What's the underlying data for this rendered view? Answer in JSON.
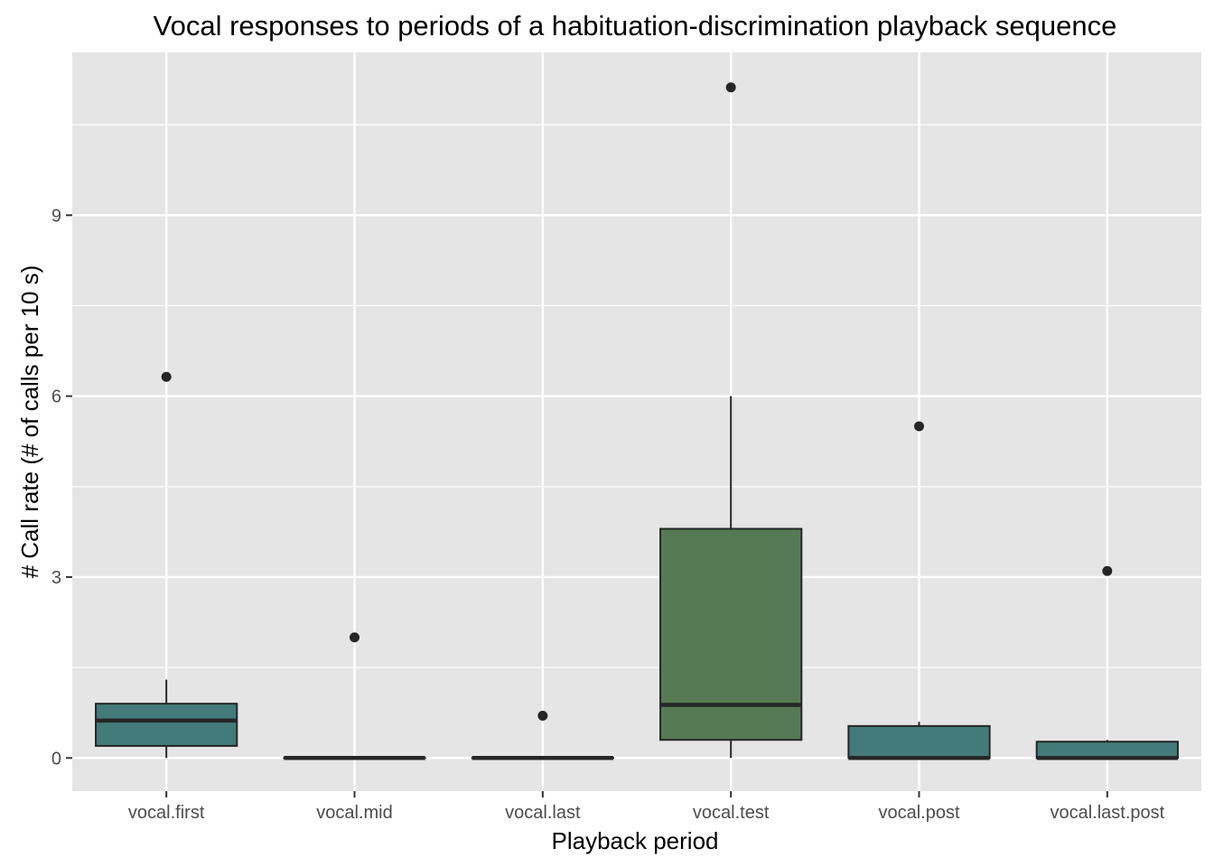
{
  "chart_data": {
    "type": "boxplot",
    "title": "Vocal responses to periods of a habituation-discrimination playback sequence",
    "xlabel": "Playback period",
    "ylabel": "# Call rate (# of calls per 10 s)",
    "categories": [
      "vocal.first",
      "vocal.mid",
      "vocal.last",
      "vocal.test",
      "vocal.post",
      "vocal.last.post"
    ],
    "ylim": [
      -0.55,
      11.7
    ],
    "yticks": [
      0,
      3,
      6,
      9
    ],
    "ytick_labels": [
      "0",
      "3",
      "6",
      "9"
    ],
    "grid": true,
    "legend": "none",
    "boxes": [
      {
        "category": "vocal.first",
        "q1": 0.2,
        "median": 0.62,
        "q3": 0.9,
        "whisker_low": 0.0,
        "whisker_high": 1.3,
        "outliers": [
          6.32
        ],
        "color": "#427b7a"
      },
      {
        "category": "vocal.mid",
        "q1": 0.0,
        "median": 0.0,
        "q3": 0.0,
        "whisker_low": 0.0,
        "whisker_high": 0.0,
        "outliers": [
          2.0
        ],
        "color": "#427b7a"
      },
      {
        "category": "vocal.last",
        "q1": 0.0,
        "median": 0.0,
        "q3": 0.0,
        "whisker_low": 0.0,
        "whisker_high": 0.0,
        "outliers": [
          0.7
        ],
        "color": "#427b7a"
      },
      {
        "category": "vocal.test",
        "q1": 0.3,
        "median": 0.88,
        "q3": 3.8,
        "whisker_low": 0.0,
        "whisker_high": 6.0,
        "outliers": [
          11.12
        ],
        "color": "#557a54"
      },
      {
        "category": "vocal.post",
        "q1": 0.0,
        "median": 0.0,
        "q3": 0.53,
        "whisker_low": 0.0,
        "whisker_high": 0.6,
        "outliers": [
          5.5
        ],
        "color": "#427b7a"
      },
      {
        "category": "vocal.last.post",
        "q1": 0.0,
        "median": 0.0,
        "q3": 0.27,
        "whisker_low": 0.0,
        "whisker_high": 0.3,
        "outliers": [
          3.1
        ],
        "color": "#427b7a"
      }
    ]
  }
}
